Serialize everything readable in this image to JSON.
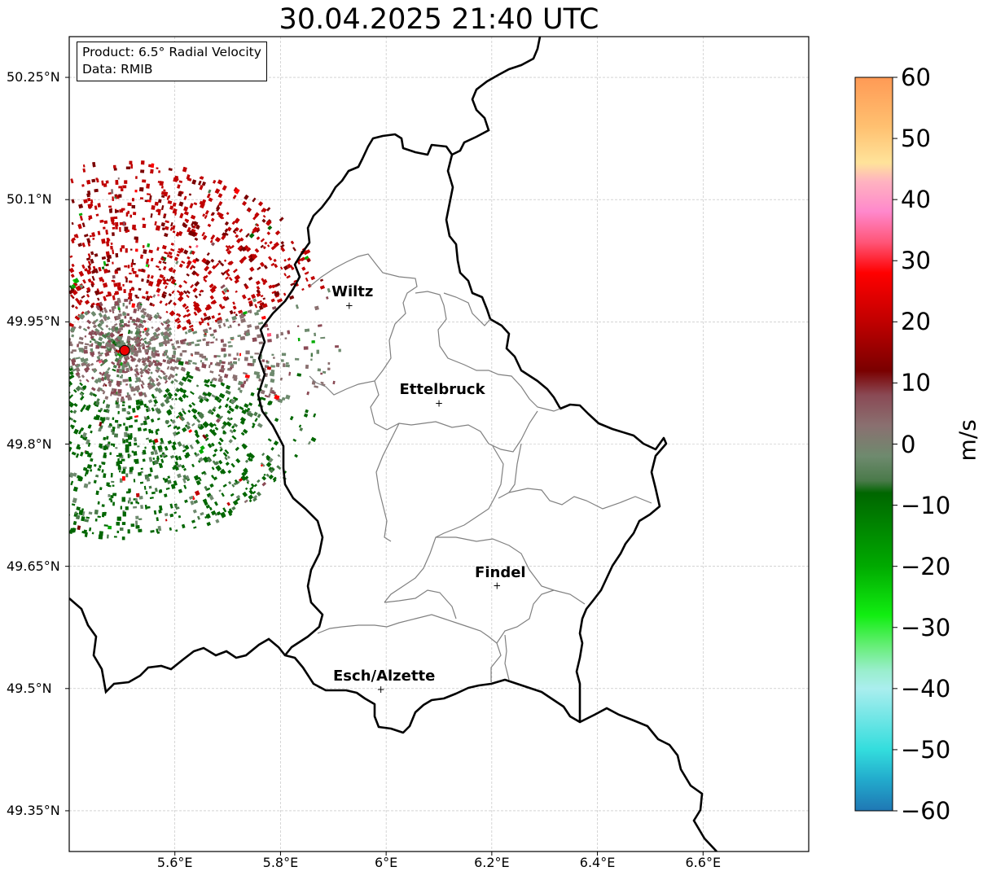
{
  "title": "30.04.2025 21:40 UTC",
  "infobox": {
    "product": "Product: 6.5° Radial Velocity",
    "data": "Data: RMIB"
  },
  "axes": {
    "lat_ticks": [
      "50.25°N",
      "50.1°N",
      "49.95°N",
      "49.8°N",
      "49.65°N",
      "49.5°N",
      "49.35°N"
    ],
    "lat_values": [
      50.25,
      50.1,
      49.95,
      49.8,
      49.65,
      49.5,
      49.35
    ],
    "lon_ticks": [
      "5.6°E",
      "5.8°E",
      "6°E",
      "6.2°E",
      "6.4°E",
      "6.6°E"
    ],
    "lon_values": [
      5.6,
      5.8,
      6.0,
      6.2,
      6.4,
      6.6
    ],
    "lon_range": [
      5.4,
      6.8
    ],
    "lat_range": [
      49.3,
      50.3
    ],
    "grid": true
  },
  "places": [
    {
      "name": "Wiltz",
      "lon": 5.93,
      "lat": 49.97
    },
    {
      "name": "Ettelbruck",
      "lon": 6.1,
      "lat": 49.85
    },
    {
      "name": "Findel",
      "lon": 6.21,
      "lat": 49.626
    },
    {
      "name": "Esch/Alzette",
      "lon": 5.99,
      "lat": 49.499
    }
  ],
  "radar": {
    "lon": 5.505,
    "lat": 49.915,
    "color": "#ee0000"
  },
  "colorbar": {
    "label": "m/s",
    "ticks": [
      "60",
      "50",
      "40",
      "30",
      "20",
      "10",
      "0",
      "−10",
      "−20",
      "−30",
      "−40",
      "−50",
      "−60"
    ],
    "tick_values": [
      60,
      50,
      40,
      30,
      20,
      10,
      0,
      -10,
      -20,
      -30,
      -40,
      -50,
      -60
    ],
    "range": [
      -60,
      60
    ],
    "stops": [
      {
        "v": 60,
        "c": "#ff9a55"
      },
      {
        "v": 52,
        "c": "#ffc070"
      },
      {
        "v": 46,
        "c": "#ffe39a"
      },
      {
        "v": 43,
        "c": "#ffb3c0"
      },
      {
        "v": 38,
        "c": "#ff88cc"
      },
      {
        "v": 33,
        "c": "#ff5577"
      },
      {
        "v": 28,
        "c": "#ff0000"
      },
      {
        "v": 20,
        "c": "#c00000"
      },
      {
        "v": 12,
        "c": "#7a0000"
      },
      {
        "v": 8,
        "c": "#8a4a55"
      },
      {
        "v": 3,
        "c": "#8a7070"
      },
      {
        "v": -2,
        "c": "#6e8a6e"
      },
      {
        "v": -6,
        "c": "#4a7a4a"
      },
      {
        "v": -8,
        "c": "#006600"
      },
      {
        "v": -20,
        "c": "#00aa00"
      },
      {
        "v": -28,
        "c": "#11ee11"
      },
      {
        "v": -33,
        "c": "#66ee77"
      },
      {
        "v": -37,
        "c": "#99eecc"
      },
      {
        "v": -40,
        "c": "#aaeeee"
      },
      {
        "v": -50,
        "c": "#33dddd"
      },
      {
        "v": -55,
        "c": "#22aacc"
      },
      {
        "v": -60,
        "c": "#1f77b4"
      }
    ]
  }
}
